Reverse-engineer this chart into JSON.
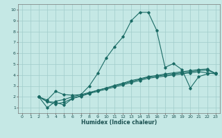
{
  "xlabel": "Humidex (Indice chaleur)",
  "xlim": [
    -0.5,
    23.5
  ],
  "ylim": [
    0.5,
    10.5
  ],
  "xticks": [
    0,
    1,
    2,
    3,
    4,
    5,
    6,
    7,
    8,
    9,
    10,
    11,
    12,
    13,
    14,
    15,
    16,
    17,
    18,
    19,
    20,
    21,
    22,
    23
  ],
  "yticks": [
    1,
    2,
    3,
    4,
    5,
    6,
    7,
    8,
    9,
    10
  ],
  "bg_color": "#c5e8e5",
  "plot_bg": "#c5e8e5",
  "line_color": "#1a6b65",
  "grid_color": "#a0ccca",
  "lines": [
    {
      "x": [
        2,
        3,
        4,
        5,
        6,
        7,
        8,
        9,
        10,
        11,
        12,
        13,
        14,
        15,
        16,
        17,
        18,
        19,
        20,
        21,
        22,
        23
      ],
      "y": [
        2.0,
        1.7,
        2.5,
        2.2,
        2.15,
        2.2,
        3.0,
        4.15,
        5.55,
        6.6,
        7.5,
        9.0,
        9.75,
        9.75,
        8.1,
        4.7,
        5.05,
        4.5,
        2.8,
        3.85,
        4.1,
        4.2
      ]
    },
    {
      "x": [
        2,
        3,
        4,
        5,
        6,
        7,
        8,
        9,
        10,
        11,
        12,
        13,
        14,
        15,
        16,
        17,
        18,
        19,
        20,
        21,
        22,
        23
      ],
      "y": [
        2.0,
        1.55,
        1.5,
        1.25,
        1.85,
        2.1,
        2.35,
        2.6,
        2.8,
        3.05,
        3.25,
        3.5,
        3.65,
        3.85,
        3.95,
        4.1,
        4.2,
        4.3,
        4.4,
        4.5,
        4.55,
        4.15
      ]
    },
    {
      "x": [
        2,
        3,
        4,
        5,
        6,
        7,
        8,
        9,
        10,
        11,
        12,
        13,
        14,
        15,
        16,
        17,
        18,
        19,
        20,
        21,
        22,
        23
      ],
      "y": [
        2.0,
        1.55,
        1.35,
        1.5,
        1.85,
        2.05,
        2.3,
        2.5,
        2.7,
        2.9,
        3.1,
        3.3,
        3.5,
        3.7,
        3.8,
        3.9,
        4.0,
        4.1,
        4.2,
        4.3,
        4.2,
        4.1
      ]
    },
    {
      "x": [
        2,
        3,
        4,
        5,
        6,
        7,
        8,
        9,
        10,
        11,
        12,
        13,
        14,
        15,
        16,
        17,
        18,
        19,
        20,
        21,
        22,
        23
      ],
      "y": [
        2.0,
        1.0,
        1.6,
        1.75,
        2.0,
        2.2,
        2.4,
        2.6,
        2.8,
        3.0,
        3.2,
        3.4,
        3.6,
        3.8,
        3.9,
        4.0,
        4.1,
        4.2,
        4.3,
        4.4,
        4.45,
        4.15
      ]
    }
  ]
}
